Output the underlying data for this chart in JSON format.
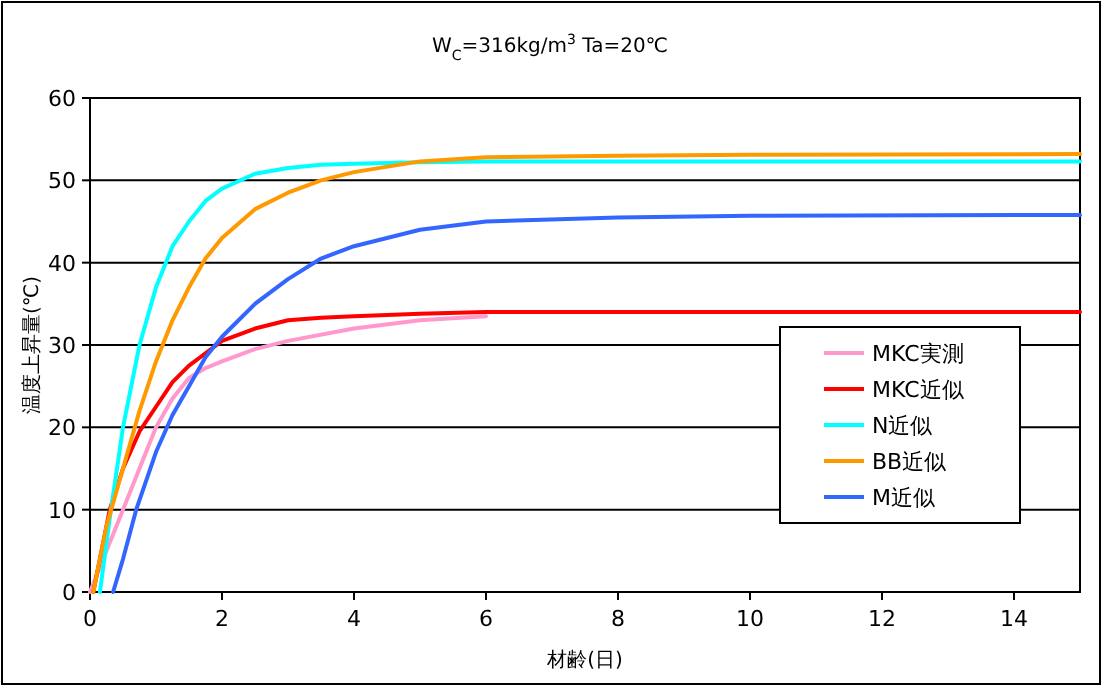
{
  "chart_data": {
    "type": "line",
    "title": "W$_{C}$=316kg/m$^{3}$  Ta=20℃",
    "xlabel": "材齢(日)",
    "ylabel": "温度上昇量(℃)",
    "xlim": [
      0,
      15
    ],
    "ylim": [
      0,
      60
    ],
    "xticks": [
      0,
      2,
      4,
      6,
      8,
      10,
      12,
      14
    ],
    "yticks": [
      0,
      10,
      20,
      30,
      40,
      50,
      60
    ],
    "grid": "y",
    "legend": "right",
    "marker": "none",
    "line_style": "solid",
    "series": [
      {
        "name": "MKC実測",
        "color": "#ff99cc",
        "x": [
          0,
          0.25,
          0.5,
          0.75,
          1,
          1.25,
          1.5,
          1.75,
          2,
          2.5,
          3,
          4,
          5,
          6
        ],
        "values": [
          0,
          5,
          10,
          15,
          20,
          23.5,
          26,
          27.2,
          28,
          29.5,
          30.5,
          32,
          33,
          33.5
        ]
      },
      {
        "name": "MKC近似",
        "color": "#ff0000",
        "x": [
          0.05,
          0.3,
          0.5,
          0.75,
          1,
          1.25,
          1.5,
          1.75,
          2,
          2.5,
          3,
          3.5,
          4,
          5,
          6,
          8,
          10,
          15
        ],
        "values": [
          0,
          10,
          15,
          19.5,
          22.5,
          25.5,
          27.5,
          29,
          30.5,
          32,
          33,
          33.3,
          33.5,
          33.8,
          34,
          34,
          34,
          34
        ]
      },
      {
        "name": "N近似",
        "color": "#00ffff",
        "x": [
          0.15,
          0.3,
          0.5,
          0.75,
          1,
          1.25,
          1.5,
          1.75,
          2,
          2.5,
          3,
          3.5,
          4,
          5,
          6,
          8,
          10,
          15
        ],
        "values": [
          0,
          9,
          20,
          30,
          37,
          42,
          45,
          47.5,
          49,
          50.8,
          51.5,
          51.9,
          52,
          52.2,
          52.3,
          52.3,
          52.3,
          52.3
        ]
      },
      {
        "name": "BB近似",
        "color": "#ff9900",
        "x": [
          0.05,
          0.25,
          0.5,
          0.75,
          1,
          1.25,
          1.5,
          1.75,
          2,
          2.5,
          3,
          3.5,
          4,
          5,
          6,
          8,
          10,
          15
        ],
        "values": [
          0,
          8,
          15,
          22,
          28,
          33,
          37,
          40.5,
          43,
          46.5,
          48.5,
          50,
          51,
          52.3,
          52.8,
          53,
          53.1,
          53.2
        ]
      },
      {
        "name": "M近似",
        "color": "#3366ff",
        "x": [
          0.35,
          0.5,
          0.7,
          1,
          1.25,
          1.5,
          1.75,
          2,
          2.5,
          3,
          3.5,
          4,
          5,
          6,
          8,
          10,
          15
        ],
        "values": [
          0,
          4,
          10,
          17,
          21.5,
          25,
          28.5,
          31,
          35,
          38,
          40.5,
          42,
          44,
          45,
          45.5,
          45.7,
          45.8
        ]
      }
    ]
  }
}
